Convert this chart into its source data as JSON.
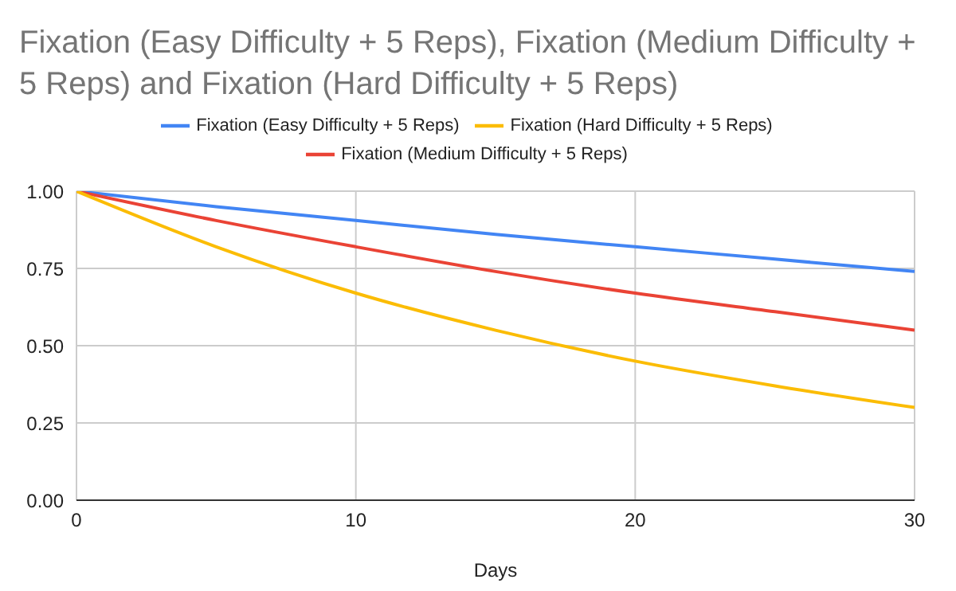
{
  "chart_data": {
    "type": "line",
    "title": "Fixation (Easy Difficulty + 5 Reps), Fixation (Medium Difficulty + 5 Reps) and Fixation (Hard Difficulty + 5 Reps)",
    "xlabel": "Days",
    "x": [
      0,
      5,
      10,
      15,
      20,
      25,
      30
    ],
    "series": [
      {
        "name": "Fixation (Easy Difficulty + 5 Reps)",
        "color": "#4285f4",
        "values": [
          1,
          0.95,
          0.905,
          0.86,
          0.82,
          0.78,
          0.74
        ]
      },
      {
        "name": "Fixation (Medium Difficulty + 5 Reps)",
        "color": "#ea4335",
        "values": [
          1,
          0.905,
          0.82,
          0.74,
          0.67,
          0.61,
          0.55
        ]
      },
      {
        "name": "Fixation (Hard Difficulty + 5 Reps)",
        "color": "#fbbc04",
        "values": [
          1,
          0.82,
          0.67,
          0.55,
          0.45,
          0.37,
          0.3
        ]
      }
    ],
    "xlim": [
      0,
      30
    ],
    "xticks": [
      0,
      10,
      20,
      30
    ],
    "ylim": [
      0,
      1
    ],
    "yticks": [
      {
        "value": 0,
        "label": "0.00"
      },
      {
        "value": 0.25,
        "label": "0.25"
      },
      {
        "value": 0.5,
        "label": "0.50"
      },
      {
        "value": 0.75,
        "label": "0.75"
      },
      {
        "value": 1,
        "label": "1.00"
      }
    ],
    "grid": true,
    "legend": "top",
    "marker": "none",
    "line_style": "solid"
  }
}
